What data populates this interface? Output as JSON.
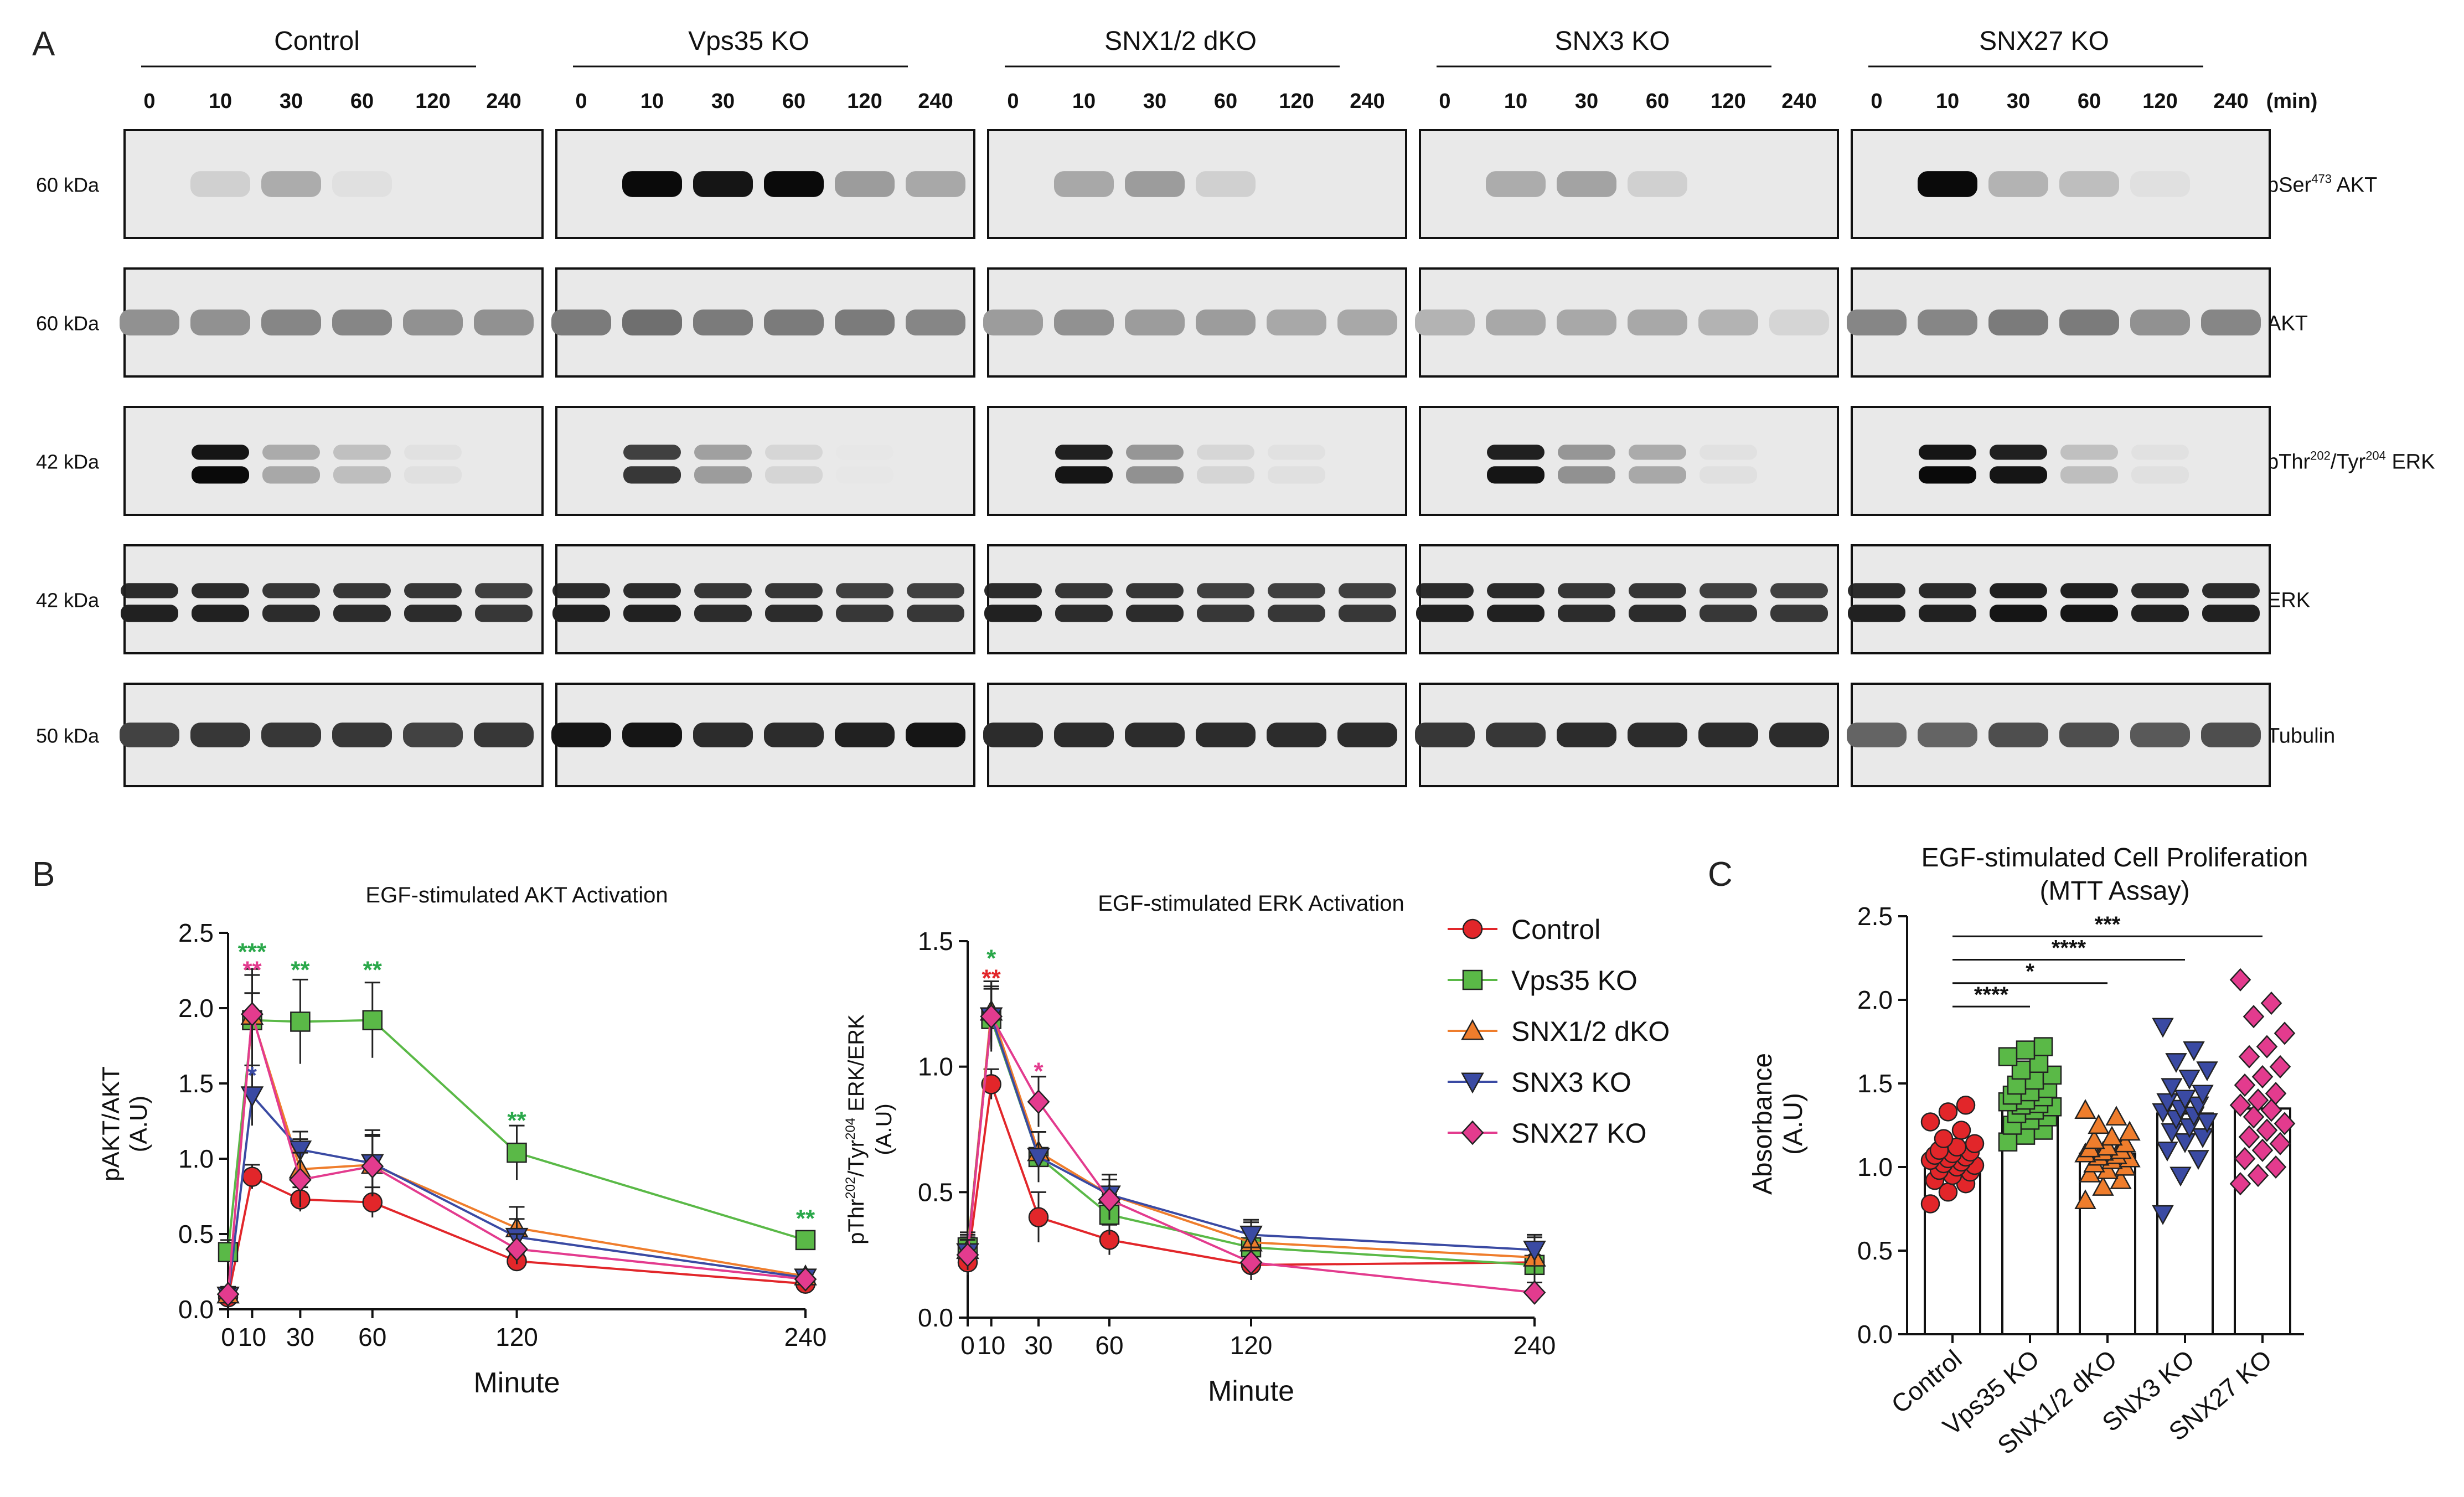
{
  "panel_a": {
    "letter": "A",
    "groups": [
      "Control",
      "Vps35 KO",
      "SNX1/2 dKO",
      "SNX3 KO",
      "SNX27 KO"
    ],
    "timepoints": [
      "0",
      "10",
      "30",
      "60",
      "120",
      "240"
    ],
    "time_unit": "(min)",
    "rows": [
      {
        "mw": "60 kDa",
        "label_base": "pSer",
        "label_sup": "473",
        "label_rest": " AKT"
      },
      {
        "mw": "60 kDa",
        "label_base": "AKT",
        "label_sup": "",
        "label_rest": ""
      },
      {
        "mw": "42 kDa",
        "label_base": "pThr",
        "label_sup": "202",
        "label_mid": "/Tyr",
        "label_sup2": "204",
        "label_rest": " ERK"
      },
      {
        "mw": "42 kDa",
        "label_base": "ERK",
        "label_sup": "",
        "label_rest": ""
      },
      {
        "mw": "50 kDa",
        "label_base": "Tubulin",
        "label_sup": "",
        "label_rest": ""
      }
    ],
    "band_intensity": [
      [
        [
          0,
          0.12,
          0.28,
          0.05,
          0,
          0
        ],
        [
          0,
          1.0,
          0.95,
          1.0,
          0.35,
          0.3
        ],
        [
          0,
          0.3,
          0.35,
          0.12,
          0,
          0
        ],
        [
          0,
          0.28,
          0.32,
          0.12,
          0,
          0
        ],
        [
          0,
          1.0,
          0.25,
          0.2,
          0.05,
          0
        ]
      ],
      [
        [
          0.4,
          0.4,
          0.45,
          0.45,
          0.4,
          0.4
        ],
        [
          0.5,
          0.55,
          0.5,
          0.5,
          0.5,
          0.45
        ],
        [
          0.35,
          0.4,
          0.35,
          0.35,
          0.3,
          0.3
        ],
        [
          0.25,
          0.3,
          0.3,
          0.3,
          0.25,
          0.1
        ],
        [
          0.45,
          0.45,
          0.5,
          0.5,
          0.4,
          0.45
        ]
      ],
      [
        [
          0,
          1.0,
          0.3,
          0.2,
          0.05,
          0
        ],
        [
          0,
          0.8,
          0.35,
          0.1,
          0.02,
          0
        ],
        [
          0,
          0.95,
          0.4,
          0.1,
          0.05,
          0
        ],
        [
          0,
          0.95,
          0.4,
          0.3,
          0.05,
          0
        ],
        [
          0,
          1.0,
          0.95,
          0.2,
          0.05,
          0
        ]
      ],
      [
        [
          0.9,
          0.9,
          0.85,
          0.85,
          0.85,
          0.8
        ],
        [
          0.9,
          0.9,
          0.85,
          0.85,
          0.8,
          0.8
        ],
        [
          0.9,
          0.85,
          0.85,
          0.8,
          0.8,
          0.8
        ],
        [
          0.9,
          0.9,
          0.85,
          0.85,
          0.8,
          0.8
        ],
        [
          0.9,
          0.9,
          0.95,
          0.95,
          0.9,
          0.9
        ]
      ],
      [
        [
          0.75,
          0.8,
          0.8,
          0.8,
          0.75,
          0.8
        ],
        [
          0.95,
          0.95,
          0.85,
          0.85,
          0.9,
          0.95
        ],
        [
          0.85,
          0.85,
          0.85,
          0.85,
          0.85,
          0.85
        ],
        [
          0.8,
          0.8,
          0.85,
          0.85,
          0.85,
          0.85
        ],
        [
          0.6,
          0.6,
          0.7,
          0.7,
          0.65,
          0.7
        ]
      ]
    ]
  },
  "panel_b": {
    "letter": "B",
    "legend": [
      "Control",
      "Vps35 KO",
      "SNX1/2 dKO",
      "SNX3 KO",
      "SNX27 KO"
    ],
    "colors": [
      "#e2262a",
      "#5ab947",
      "#ef7d2c",
      "#3a4aa3",
      "#e33b8e"
    ],
    "akt": {
      "title": "EGF-stimulated AKT Activation",
      "ylabel_line1": "pAKT/AKT",
      "ylabel_line2": "(A.U)",
      "xlabel": "Minute",
      "y_ticks": [
        "0.0",
        "0.5",
        "1.0",
        "1.5",
        "2.0",
        "2.5"
      ],
      "x_ticks": [
        "0",
        "10",
        "30",
        "60",
        "120",
        "240"
      ],
      "stars": [
        {
          "x": 10,
          "text": "***",
          "color": "#2aa84a",
          "y": 2.32
        },
        {
          "x": 10,
          "text": "**",
          "color": "#e33b8e",
          "y": 2.2
        },
        {
          "x": 10,
          "text": "*",
          "color": "#3a4aa3",
          "y": 1.5
        },
        {
          "x": 30,
          "text": "**",
          "color": "#2aa84a",
          "y": 2.2
        },
        {
          "x": 60,
          "text": "**",
          "color": "#2aa84a",
          "y": 2.2
        },
        {
          "x": 120,
          "text": "**",
          "color": "#2aa84a",
          "y": 1.2
        },
        {
          "x": 240,
          "text": "**",
          "color": "#2aa84a",
          "y": 0.55
        }
      ]
    },
    "erk": {
      "title": "EGF-stimulated ERK Activation",
      "ylabel_base": "pThr",
      "ylabel_sup": "202",
      "ylabel_mid": "/Tyr",
      "ylabel_sup2": "204",
      "ylabel_rest": " ERK/ERK",
      "ylabel_line2": "(A.U)",
      "xlabel": "Minute",
      "y_ticks": [
        "0.0",
        "0.5",
        "1.0",
        "1.5"
      ],
      "x_ticks": [
        "0",
        "10",
        "30",
        "60",
        "120",
        "240"
      ],
      "stars": [
        {
          "x": 10,
          "text": "*",
          "color": "#2aa84a",
          "y": 1.4
        },
        {
          "x": 10,
          "text": "**",
          "color": "#e2262a",
          "y": 1.32
        },
        {
          "x": 30,
          "text": "*",
          "color": "#e33b8e",
          "y": 0.95
        }
      ]
    }
  },
  "panel_c": {
    "letter": "C",
    "title_line1": "EGF-stimulated Cell Proliferation",
    "title_line2": "(MTT Assay)",
    "ylabel_line1": "Absorbance",
    "ylabel_line2": "(A.U)",
    "y_ticks": [
      "0.0",
      "0.5",
      "1.0",
      "1.5",
      "2.0",
      "2.5"
    ],
    "categories": [
      "Control",
      "Vps35 KO",
      "SNX1/2 dKO",
      "SNX3 KO",
      "SNX27 KO"
    ],
    "sig": [
      {
        "to": 4,
        "text": "***",
        "y": 2.38
      },
      {
        "to": 3,
        "text": "****",
        "y": 2.24
      },
      {
        "to": 2,
        "text": "*",
        "y": 2.1
      },
      {
        "to": 1,
        "text": "****",
        "y": 1.96
      }
    ]
  },
  "chart_data": [
    {
      "type": "line",
      "title": "EGF-stimulated AKT Activation",
      "xlabel": "Minute",
      "ylabel": "pAKT/AKT (A.U)",
      "x": [
        0,
        10,
        30,
        60,
        120,
        240
      ],
      "xlim": [
        0,
        240
      ],
      "ylim": [
        0,
        2.5
      ],
      "series": [
        {
          "name": "Control",
          "values": [
            0.08,
            0.88,
            0.73,
            0.71,
            0.32,
            0.17
          ],
          "error": [
            0.04,
            0.08,
            0.08,
            0.1,
            0.05,
            0.03
          ]
        },
        {
          "name": "Vps35 KO",
          "values": [
            0.38,
            1.92,
            1.91,
            1.92,
            1.04,
            0.46
          ],
          "error": [
            0.08,
            0.3,
            0.28,
            0.25,
            0.18,
            0.06
          ]
        },
        {
          "name": "SNX1/2 dKO",
          "values": [
            0.1,
            1.95,
            0.93,
            0.96,
            0.54,
            0.22
          ],
          "error": [
            0.05,
            0.15,
            0.2,
            0.2,
            0.14,
            0.04
          ]
        },
        {
          "name": "SNX3 KO",
          "values": [
            0.09,
            1.42,
            1.06,
            0.97,
            0.48,
            0.21
          ],
          "error": [
            0.04,
            0.2,
            0.12,
            0.22,
            0.12,
            0.04
          ]
        },
        {
          "name": "SNX27 KO",
          "values": [
            0.1,
            1.96,
            0.86,
            0.95,
            0.4,
            0.2
          ],
          "error": [
            0.04,
            0.3,
            0.18,
            0.2,
            0.1,
            0.03
          ]
        }
      ]
    },
    {
      "type": "line",
      "title": "EGF-stimulated ERK Activation",
      "xlabel": "Minute",
      "ylabel": "pThr202/Tyr204 ERK/ERK (A.U)",
      "x": [
        0,
        10,
        30,
        60,
        120,
        240
      ],
      "xlim": [
        0,
        240
      ],
      "ylim": [
        0,
        1.5
      ],
      "series": [
        {
          "name": "Control",
          "values": [
            0.22,
            0.93,
            0.4,
            0.31,
            0.21,
            0.22
          ],
          "error": [
            0.05,
            0.06,
            0.1,
            0.06,
            0.06,
            0.06
          ]
        },
        {
          "name": "Vps35 KO",
          "values": [
            0.28,
            1.19,
            0.64,
            0.41,
            0.28,
            0.21
          ],
          "error": [
            0.06,
            0.12,
            0.1,
            0.08,
            0.08,
            0.08
          ]
        },
        {
          "name": "SNX1/2 dKO",
          "values": [
            0.27,
            1.22,
            0.66,
            0.49,
            0.3,
            0.24
          ],
          "error": [
            0.06,
            0.12,
            0.08,
            0.08,
            0.08,
            0.08
          ]
        },
        {
          "name": "SNX3 KO",
          "values": [
            0.26,
            1.2,
            0.64,
            0.49,
            0.33,
            0.27
          ],
          "error": [
            0.06,
            0.12,
            0.1,
            0.08,
            0.06,
            0.06
          ]
        },
        {
          "name": "SNX27 KO",
          "values": [
            0.25,
            1.2,
            0.86,
            0.47,
            0.22,
            0.1
          ],
          "error": [
            0.06,
            0.14,
            0.1,
            0.08,
            0.06,
            0.04
          ]
        }
      ]
    },
    {
      "type": "bar",
      "title": "EGF-stimulated Cell Proliferation (MTT Assay)",
      "ylabel": "Absorbance (A.U)",
      "categories": [
        "Control",
        "Vps35 KO",
        "SNX1/2 dKO",
        "SNX3 KO",
        "SNX27 KO"
      ],
      "values": [
        1.05,
        1.38,
        1.08,
        1.32,
        1.35
      ],
      "ylim": [
        0,
        2.5
      ],
      "points": [
        [
          0.78,
          0.85,
          0.9,
          0.92,
          0.95,
          0.97,
          0.98,
          1.0,
          1.01,
          1.02,
          1.03,
          1.04,
          1.05,
          1.06,
          1.07,
          1.08,
          1.09,
          1.1,
          1.12,
          1.14,
          1.17,
          1.22,
          1.27,
          1.33,
          1.37
        ],
        [
          1.15,
          1.19,
          1.22,
          1.25,
          1.28,
          1.3,
          1.32,
          1.34,
          1.36,
          1.37,
          1.38,
          1.39,
          1.4,
          1.42,
          1.43,
          1.45,
          1.47,
          1.49,
          1.52,
          1.55,
          1.58,
          1.62,
          1.66,
          1.7,
          1.72
        ],
        [
          0.8,
          0.88,
          0.92,
          0.96,
          0.98,
          1.0,
          1.02,
          1.04,
          1.05,
          1.06,
          1.07,
          1.08,
          1.09,
          1.1,
          1.11,
          1.12,
          1.14,
          1.16,
          1.18,
          1.21,
          1.25,
          1.3,
          1.34
        ],
        [
          0.72,
          0.95,
          1.05,
          1.1,
          1.15,
          1.18,
          1.21,
          1.24,
          1.27,
          1.29,
          1.31,
          1.33,
          1.35,
          1.37,
          1.39,
          1.41,
          1.44,
          1.48,
          1.53,
          1.58,
          1.63,
          1.7,
          1.84
        ],
        [
          0.9,
          0.95,
          1.0,
          1.05,
          1.1,
          1.14,
          1.18,
          1.22,
          1.26,
          1.3,
          1.34,
          1.37,
          1.4,
          1.44,
          1.49,
          1.54,
          1.6,
          1.66,
          1.72,
          1.8,
          1.9,
          1.98,
          2.12
        ]
      ]
    }
  ]
}
